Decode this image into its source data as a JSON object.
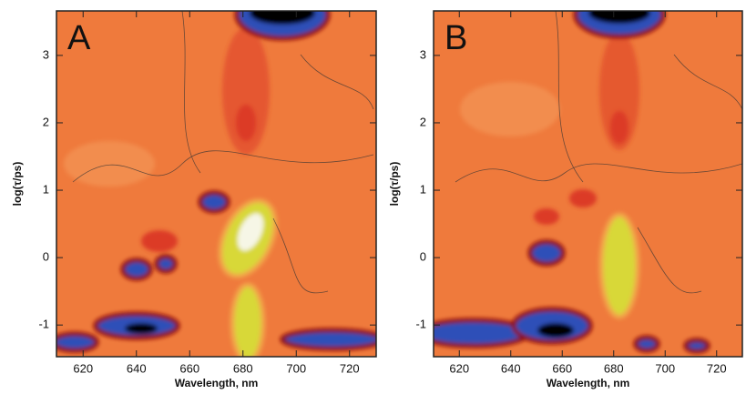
{
  "chart_data": [
    {
      "type": "contour",
      "panel_label": "A",
      "xlabel": "Wavelength, nm",
      "ylabel": "log(τ/ps)",
      "xlim": [
        610,
        730
      ],
      "xticks": [
        620,
        640,
        660,
        680,
        700,
        720
      ],
      "ylim": [
        -1.47,
        3.66
      ],
      "yticks": [
        -1,
        0,
        1,
        2,
        3
      ]
    },
    {
      "type": "contour",
      "panel_label": "B",
      "xlabel": "Wavelength, nm",
      "ylabel": "log(τ/ps)",
      "xlim": [
        610,
        730
      ],
      "xticks": [
        620,
        640,
        660,
        680,
        700,
        720
      ],
      "ylim": [
        -1.47,
        3.66
      ],
      "yticks": [
        -1,
        0,
        1,
        2,
        3
      ]
    }
  ]
}
